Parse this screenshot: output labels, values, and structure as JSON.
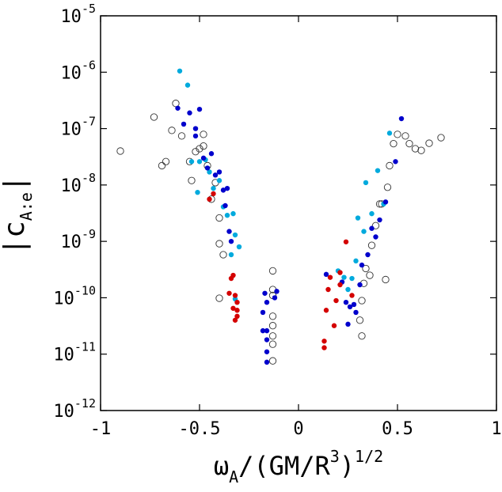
{
  "chart_data": {
    "type": "scatter",
    "log_y": true,
    "xlim": [
      -1,
      1
    ],
    "xticks": [
      -1,
      -0.5,
      0,
      0.5,
      1
    ],
    "ylim": [
      1e-12,
      1e-05
    ],
    "yticks": [
      {
        "value": 1e-12,
        "label": "10",
        "exponent": "-12"
      },
      {
        "value": 1e-11,
        "label": "10",
        "exponent": "-11"
      },
      {
        "value": 1e-10,
        "label": "10",
        "exponent": "-10"
      },
      {
        "value": 1e-09,
        "label": "10",
        "exponent": "-9"
      },
      {
        "value": 1e-08,
        "label": "10",
        "exponent": "-8"
      },
      {
        "value": 1e-07,
        "label": "10",
        "exponent": "-7"
      },
      {
        "value": 1e-06,
        "label": "10",
        "exponent": "-6"
      },
      {
        "value": 1e-05,
        "label": "10",
        "exponent": "-5"
      }
    ],
    "x_label": [
      {
        "text": "ω"
      },
      {
        "text": "A",
        "shift": "sub"
      },
      {
        "text": "/(GM/R"
      },
      {
        "text": "3",
        "shift": "super"
      },
      {
        "text": ")"
      },
      {
        "text": "1/2",
        "shift": "super"
      }
    ],
    "y_label": [
      {
        "text": "|c"
      },
      {
        "text": "A:e",
        "shift": "sub"
      },
      {
        "text": "|"
      }
    ],
    "series": [
      {
        "color": "#333333",
        "marker": "open",
        "x": [
          -0.9,
          -0.73,
          -0.69,
          -0.67,
          -0.64,
          -0.62,
          -0.59,
          -0.55,
          -0.54,
          -0.52,
          -0.5,
          -0.48,
          -0.48,
          -0.46,
          -0.42,
          -0.44,
          -0.4,
          -0.4,
          -0.38,
          -0.4,
          -0.13,
          -0.13,
          -0.13,
          -0.13,
          -0.13,
          -0.13,
          -0.13,
          -0.13,
          0.32,
          0.31,
          0.32,
          0.33,
          0.34,
          0.36,
          0.37,
          0.39,
          0.41,
          0.42,
          0.44,
          0.45,
          0.46,
          0.48,
          0.5,
          0.54,
          0.56,
          0.59,
          0.62,
          0.66,
          0.72
        ],
        "values": [
          4e-08,
          1.6e-07,
          2.2e-08,
          2.6e-08,
          9.3e-08,
          2.8e-07,
          7.4e-08,
          2.6e-08,
          1.2e-08,
          3.9e-08,
          4.4e-08,
          4.9e-08,
          7.9e-08,
          2.2e-08,
          1.1e-08,
          5.6e-09,
          2.6e-09,
          9.1e-10,
          5.8e-10,
          9.8e-11,
          3e-10,
          1.4e-10,
          1.1e-10,
          4.7e-11,
          3.2e-11,
          2.1e-11,
          1.5e-11,
          7.6e-12,
          2.1e-11,
          4e-11,
          8.9e-11,
          1.8e-10,
          3.3e-10,
          2.5e-10,
          8.5e-10,
          1.9e-09,
          4.6e-09,
          4.6e-09,
          2.1e-10,
          9.1e-09,
          2.2e-08,
          5.4e-08,
          7.9e-08,
          7.4e-08,
          5.4e-08,
          4.4e-08,
          4.1e-08,
          5.5e-08,
          6.9e-08
        ]
      },
      {
        "color": "#00aadd",
        "marker": "filled",
        "x": [
          -0.6,
          -0.56,
          -0.51,
          -0.54,
          -0.5,
          -0.47,
          -0.45,
          -0.43,
          -0.4,
          -0.38,
          -0.36,
          -0.33,
          -0.32,
          -0.3,
          -0.34,
          -0.32,
          0.2,
          0.23,
          0.27,
          0.29,
          0.3,
          0.33,
          0.34,
          0.37,
          0.4,
          0.43,
          0.46,
          0.25
        ],
        "values": [
          1.05e-06,
          5.9e-07,
          7.4e-09,
          2.6e-08,
          2.6e-08,
          2.8e-08,
          1.7e-08,
          8.7e-09,
          1.2e-08,
          4.1e-09,
          2.9e-09,
          3.1e-09,
          1.3e-09,
          8e-10,
          5.8e-10,
          9.5e-11,
          3e-10,
          2.3e-10,
          2.2e-10,
          4.5e-10,
          2.6e-09,
          1.5e-09,
          1.1e-08,
          3.1e-09,
          1.8e-08,
          4.6e-09,
          8.3e-08,
          1.4e-10
        ]
      },
      {
        "color": "#0000cc",
        "marker": "filled",
        "x": [
          -0.61,
          -0.58,
          -0.55,
          -0.52,
          -0.52,
          -0.5,
          -0.48,
          -0.46,
          -0.44,
          -0.42,
          -0.4,
          -0.38,
          -0.36,
          -0.37,
          -0.35,
          -0.34,
          -0.17,
          -0.16,
          -0.18,
          -0.18,
          -0.16,
          -0.16,
          -0.16,
          -0.16,
          -0.11,
          -0.12,
          0.14,
          0.22,
          0.24,
          0.26,
          0.28,
          0.25,
          0.29,
          0.31,
          0.32,
          0.35,
          0.37,
          0.39,
          0.41,
          0.44,
          0.49,
          0.52
        ],
        "values": [
          2.3e-07,
          1.2e-07,
          1.9e-07,
          1e-07,
          7.4e-08,
          2.2e-07,
          3e-08,
          2e-08,
          3.6e-08,
          1.5e-08,
          1.7e-08,
          8.1e-09,
          8.7e-09,
          4.3e-09,
          1.5e-09,
          1e-09,
          1.2e-10,
          8.3e-11,
          5.5e-11,
          2.6e-11,
          2.6e-11,
          1.8e-11,
          1.1e-11,
          7.2e-12,
          1.3e-10,
          1e-10,
          2.6e-10,
          1.9e-10,
          8.3e-11,
          6.9e-11,
          7.6e-11,
          3.4e-11,
          5.5e-11,
          1.7e-10,
          3.8e-10,
          5.8e-10,
          1.7e-09,
          1.2e-09,
          2.4e-09,
          5e-09,
          2.6e-08,
          1.5e-07
        ]
      },
      {
        "color": "#d40000",
        "marker": "filled",
        "x": [
          -0.45,
          -0.43,
          -0.33,
          -0.34,
          -0.35,
          -0.32,
          -0.31,
          -0.31,
          -0.31,
          -0.32,
          -0.33,
          0.13,
          0.13,
          0.14,
          0.15,
          0.16,
          0.18,
          0.19,
          0.21,
          0.24,
          0.27,
          0.21
        ],
        "values": [
          5.6e-09,
          7e-09,
          2.5e-10,
          2.2e-10,
          1.2e-10,
          1.1e-10,
          8.3e-11,
          6e-11,
          4.7e-11,
          4e-11,
          6.5e-11,
          1.7e-11,
          1.3e-11,
          6e-11,
          1.4e-10,
          2.3e-10,
          3.2e-11,
          8.9e-11,
          1.7e-10,
          9.8e-10,
          1.1e-10,
          2.8e-10
        ]
      }
    ]
  }
}
